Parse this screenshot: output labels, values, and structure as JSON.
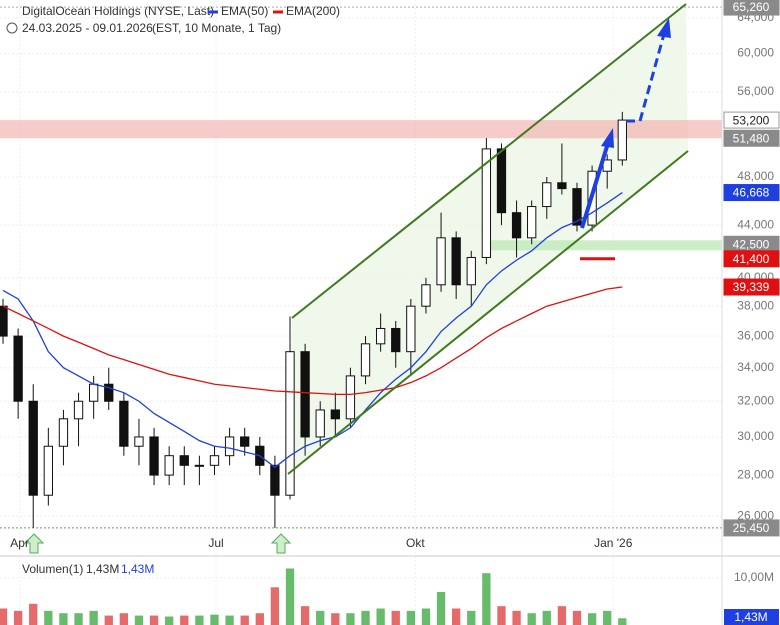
{
  "chart_data": {
    "type": "candlestick",
    "title": "DigitalOcean Holdings (NYSE, Last)",
    "subtitle": "24.03.2025 - 09.01.2026",
    "subtitle_note": "(EST, 10 Monate, 1 Tag)",
    "log_scale": true,
    "grid": true,
    "ylim": [
      24900,
      66100
    ],
    "yticks": [
      {
        "value": 26000,
        "label": "26,000"
      },
      {
        "value": 28000,
        "label": "28,000"
      },
      {
        "value": 30000,
        "label": "30,000"
      },
      {
        "value": 32000,
        "label": "32,000"
      },
      {
        "value": 34000,
        "label": "34,000"
      },
      {
        "value": 36000,
        "label": "36,000"
      },
      {
        "value": 38000,
        "label": "38,000"
      },
      {
        "value": 40000,
        "label": "40,000"
      },
      {
        "value": 44000,
        "label": "44,000"
      },
      {
        "value": 48000,
        "label": "48,000"
      },
      {
        "value": 56000,
        "label": "56,000"
      },
      {
        "value": 60000,
        "label": "60,000"
      },
      {
        "value": 64000,
        "label": "64,000"
      }
    ],
    "xlim": [
      -0.2,
      47.6
    ],
    "xticks": [
      {
        "value": 1.1,
        "label": "Apr"
      },
      {
        "value": 14.1,
        "label": "Jul"
      },
      {
        "value": 27.3,
        "label": "Okt"
      },
      {
        "value": 40.4,
        "label": "Jan '26"
      }
    ],
    "open": [
      38000,
      36000,
      32000,
      27000,
      29500,
      31000,
      32000,
      33000,
      32000,
      29500,
      30000,
      28000,
      29000,
      28500,
      28500,
      29000,
      30000,
      29500,
      28500,
      27000,
      35000,
      30000,
      31500,
      31000,
      33500,
      35500,
      36500,
      35000,
      38000,
      39500,
      43000,
      39500,
      41500,
      50500,
      45000,
      43000,
      45500,
      47500,
      47000,
      44000,
      48500,
      49500
    ],
    "high": [
      38500,
      36500,
      33000,
      30500,
      31500,
      32500,
      33500,
      34000,
      32500,
      31000,
      30500,
      29500,
      29500,
      29000,
      29500,
      30500,
      30500,
      30000,
      29000,
      37300,
      35500,
      32000,
      32500,
      34000,
      36000,
      37500,
      37000,
      38500,
      40000,
      45000,
      43500,
      42000,
      51500,
      51000,
      46000,
      46000,
      48000,
      51000,
      47500,
      49000,
      50000,
      54000
    ],
    "low": [
      35500,
      31000,
      25450,
      26500,
      28500,
      29500,
      31000,
      31500,
      29000,
      28500,
      27500,
      27500,
      27500,
      27500,
      28000,
      28500,
      29000,
      28000,
      25450,
      26800,
      29000,
      29500,
      30000,
      30500,
      33000,
      35000,
      34000,
      33500,
      37500,
      39000,
      38500,
      38000,
      41000,
      44000,
      41500,
      42500,
      44500,
      46500,
      43500,
      43500,
      47000,
      49000
    ],
    "close": [
      36000,
      32000,
      27000,
      29500,
      31000,
      32000,
      33000,
      32000,
      29500,
      30000,
      28000,
      29000,
      28500,
      28500,
      29000,
      30000,
      29500,
      28500,
      27000,
      35000,
      30000,
      31500,
      31000,
      33500,
      35500,
      36500,
      35000,
      38000,
      39500,
      43000,
      39500,
      41500,
      50500,
      45000,
      43000,
      45500,
      47500,
      47000,
      44000,
      48500,
      49500,
      53200
    ],
    "series": [
      {
        "name": "EMA(50)",
        "color": "#1f3fe0",
        "values": [
          39100,
          38500,
          37000,
          35000,
          34000,
          33500,
          33000,
          32800,
          32500,
          32000,
          31300,
          30800,
          30300,
          29800,
          29500,
          29400,
          29200,
          29000,
          28400,
          29000,
          29500,
          29800,
          30000,
          30500,
          31500,
          32500,
          33300,
          34000,
          35000,
          36300,
          37200,
          38000,
          39500,
          40500,
          41300,
          42000,
          43000,
          43800,
          44300,
          45000,
          45800,
          46668
        ]
      },
      {
        "name": "EMA(200)",
        "color": "#e01010",
        "values": [
          38000,
          37500,
          37000,
          36500,
          36000,
          35600,
          35200,
          34800,
          34500,
          34200,
          33900,
          33600,
          33400,
          33200,
          33000,
          32900,
          32800,
          32700,
          32600,
          32550,
          32500,
          32450,
          32400,
          32400,
          32500,
          32650,
          32800,
          33100,
          33500,
          34000,
          34600,
          35200,
          35900,
          36500,
          37000,
          37500,
          38000,
          38300,
          38600,
          38900,
          39200,
          39339
        ]
      }
    ],
    "price_labels": [
      {
        "value": 65260,
        "label": "65,260",
        "color": "#8a8a8a",
        "text_color": "#ffffff",
        "zone": "extreme"
      },
      {
        "value": 53200,
        "label": "53,200",
        "color": "#ffffff",
        "text_color": "#222222",
        "zone": "resistance"
      },
      {
        "value": 51480,
        "label": "51,480",
        "color": "#8a8a8a",
        "text_color": "#ffffff",
        "zone": "resistance"
      },
      {
        "value": 46668,
        "label": "46,668",
        "color": "#1f3fe0",
        "text_color": "#ffffff"
      },
      {
        "value": 42500,
        "label": "42,500",
        "color": "#8a8a8a",
        "text_color": "#ffffff",
        "zone": "support"
      },
      {
        "value": 41400,
        "label": "41,400",
        "color": "#e01010",
        "text_color": "#ffffff",
        "zone": "target"
      },
      {
        "value": 39339,
        "label": "39,339",
        "color": "#e01010",
        "text_color": "#ffffff"
      },
      {
        "value": 25450,
        "label": "25,450",
        "color": "#8a8a8a",
        "text_color": "#ffffff",
        "zone": "extreme"
      }
    ],
    "volume": {
      "name": "Volumen(1)",
      "legend_values": [
        {
          "value": 1430000,
          "label": "1,43M"
        },
        {
          "value": 1430000,
          "label": "1,43M"
        }
      ],
      "values": [
        3500000,
        3000000,
        4500000,
        3000000,
        2500000,
        2500000,
        3000000,
        2000000,
        2500000,
        2000000,
        2000000,
        1800000,
        2000000,
        2000000,
        2200000,
        2000000,
        2000000,
        2500000,
        8000000,
        12000000,
        4000000,
        3000000,
        2500000,
        2500000,
        3000000,
        3500000,
        3000000,
        3000000,
        3500000,
        7000000,
        3500000,
        3000000,
        11000000,
        4000000,
        3000000,
        2500000,
        3000000,
        4000000,
        3000000,
        2500000,
        3000000,
        1430000
      ],
      "ylim": [
        0,
        13800000
      ],
      "yticks": [
        {
          "value": 10000000,
          "label": "10,00M"
        }
      ],
      "last_label": {
        "value": 1430000,
        "label": "1,43M",
        "color": "#1f3fe0"
      }
    }
  }
}
